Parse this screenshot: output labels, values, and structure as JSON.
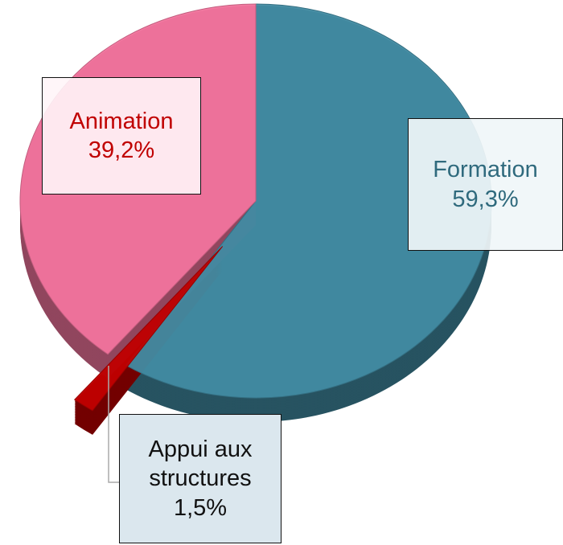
{
  "chart_data": {
    "type": "pie",
    "categories": [
      "Formation",
      "Appui aux structures",
      "Animation"
    ],
    "values": [
      59.3,
      1.5,
      39.2
    ],
    "value_labels": [
      "59,3%",
      "1,5%",
      "39,2%"
    ],
    "colors": [
      "#418ba2",
      "#c00000",
      "#f2749d"
    ]
  }
}
